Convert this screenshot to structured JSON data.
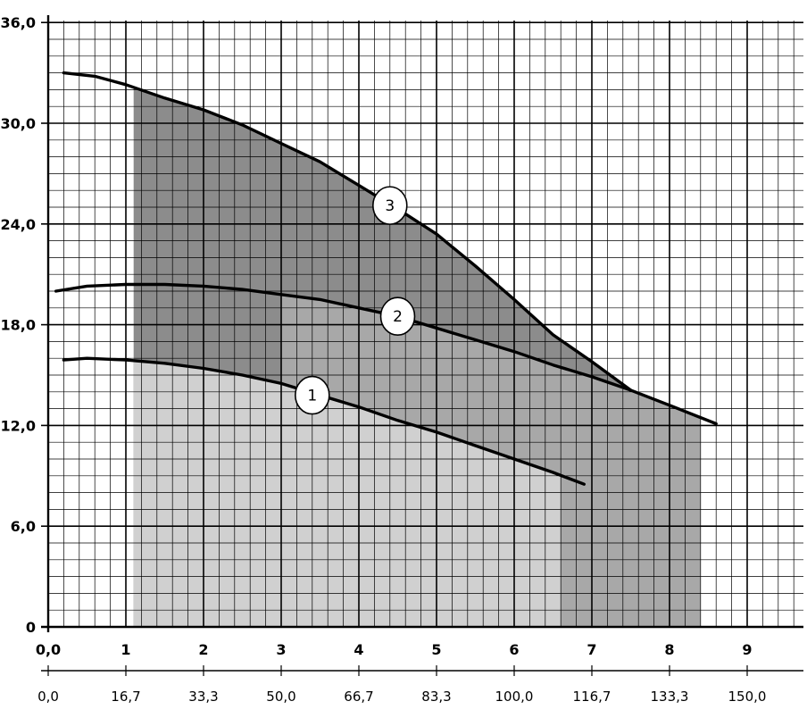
{
  "chart_data": {
    "type": "line",
    "title": "",
    "xlabel": "",
    "ylabel": "",
    "xlim": [
      0,
      9.7
    ],
    "ylim": [
      0,
      36
    ],
    "x_ticks": [
      {
        "value": 0,
        "label": "0,0"
      },
      {
        "value": 1,
        "label": "1"
      },
      {
        "value": 2,
        "label": "2"
      },
      {
        "value": 3,
        "label": "3"
      },
      {
        "value": 4,
        "label": "4"
      },
      {
        "value": 5,
        "label": "5"
      },
      {
        "value": 6,
        "label": "6"
      },
      {
        "value": 7,
        "label": "7"
      },
      {
        "value": 8,
        "label": "8"
      },
      {
        "value": 9,
        "label": "9"
      }
    ],
    "x2_ticks": [
      {
        "value": 0,
        "label": "0,0"
      },
      {
        "value": 1,
        "label": "16,7"
      },
      {
        "value": 2,
        "label": "33,3"
      },
      {
        "value": 3,
        "label": "50,0"
      },
      {
        "value": 4,
        "label": "66,7"
      },
      {
        "value": 5,
        "label": "83,3"
      },
      {
        "value": 6,
        "label": "100,0"
      },
      {
        "value": 7,
        "label": "116,7"
      },
      {
        "value": 8,
        "label": "133,3"
      },
      {
        "value": 9,
        "label": "150,0"
      }
    ],
    "y_ticks": [
      {
        "value": 0,
        "label": "0"
      },
      {
        "value": 6,
        "label": "6,0"
      },
      {
        "value": 12,
        "label": "12,0"
      },
      {
        "value": 18,
        "label": "18,0"
      },
      {
        "value": 24,
        "label": "24,0"
      },
      {
        "value": 30,
        "label": "30,0"
      },
      {
        "value": 36,
        "label": "36,0"
      }
    ],
    "grid": true,
    "series": [
      {
        "name": "1",
        "x": [
          0.2,
          0.5,
          1.0,
          1.5,
          2.0,
          2.5,
          3.0,
          3.5,
          4.0,
          4.5,
          5.0,
          5.5,
          6.0,
          6.5,
          6.9
        ],
        "y": [
          15.9,
          16.0,
          15.9,
          15.7,
          15.4,
          15.0,
          14.5,
          13.8,
          13.1,
          12.3,
          11.6,
          10.8,
          10.0,
          9.2,
          8.5
        ]
      },
      {
        "name": "2",
        "x": [
          0.1,
          0.5,
          1.0,
          1.5,
          2.0,
          2.5,
          3.0,
          3.5,
          4.0,
          4.5,
          5.0,
          5.5,
          6.0,
          6.5,
          7.0,
          7.5,
          8.0,
          8.6
        ],
        "y": [
          20.0,
          20.3,
          20.4,
          20.4,
          20.3,
          20.1,
          19.8,
          19.5,
          19.0,
          18.5,
          17.8,
          17.1,
          16.4,
          15.6,
          14.9,
          14.1,
          13.2,
          12.1
        ]
      },
      {
        "name": "3",
        "x": [
          0.2,
          0.6,
          1.0,
          1.5,
          2.0,
          2.5,
          3.0,
          3.5,
          4.0,
          4.5,
          5.0,
          5.5,
          6.0,
          6.5,
          7.0,
          7.5
        ],
        "y": [
          33.0,
          32.8,
          32.3,
          31.5,
          30.8,
          29.9,
          28.8,
          27.7,
          26.3,
          24.9,
          23.4,
          21.5,
          19.5,
          17.4,
          15.8,
          14.1
        ]
      }
    ],
    "regions": [
      {
        "name": "region-1",
        "shade": "light",
        "x": [
          1.1,
          6.6
        ],
        "y_top_curve": "1"
      },
      {
        "name": "region-2",
        "shade": "medium",
        "x": [
          3.0,
          8.4
        ],
        "y_top_curve": "2"
      },
      {
        "name": "region-3",
        "shade": "dark",
        "x": [
          1.1,
          7.5
        ],
        "y_top_curve": "3"
      }
    ],
    "curve_labels": [
      {
        "text": "1",
        "x": 3.4,
        "y": 13.8
      },
      {
        "text": "2",
        "x": 4.5,
        "y": 18.5
      },
      {
        "text": "3",
        "x": 4.4,
        "y": 25.1
      }
    ],
    "colors": {
      "background": "#ffffff",
      "grid": "#000000",
      "curve": "#000000",
      "region_light": "#d0d0d0",
      "region_medium": "#a8a8a8",
      "region_dark": "#8c8c8c"
    }
  }
}
